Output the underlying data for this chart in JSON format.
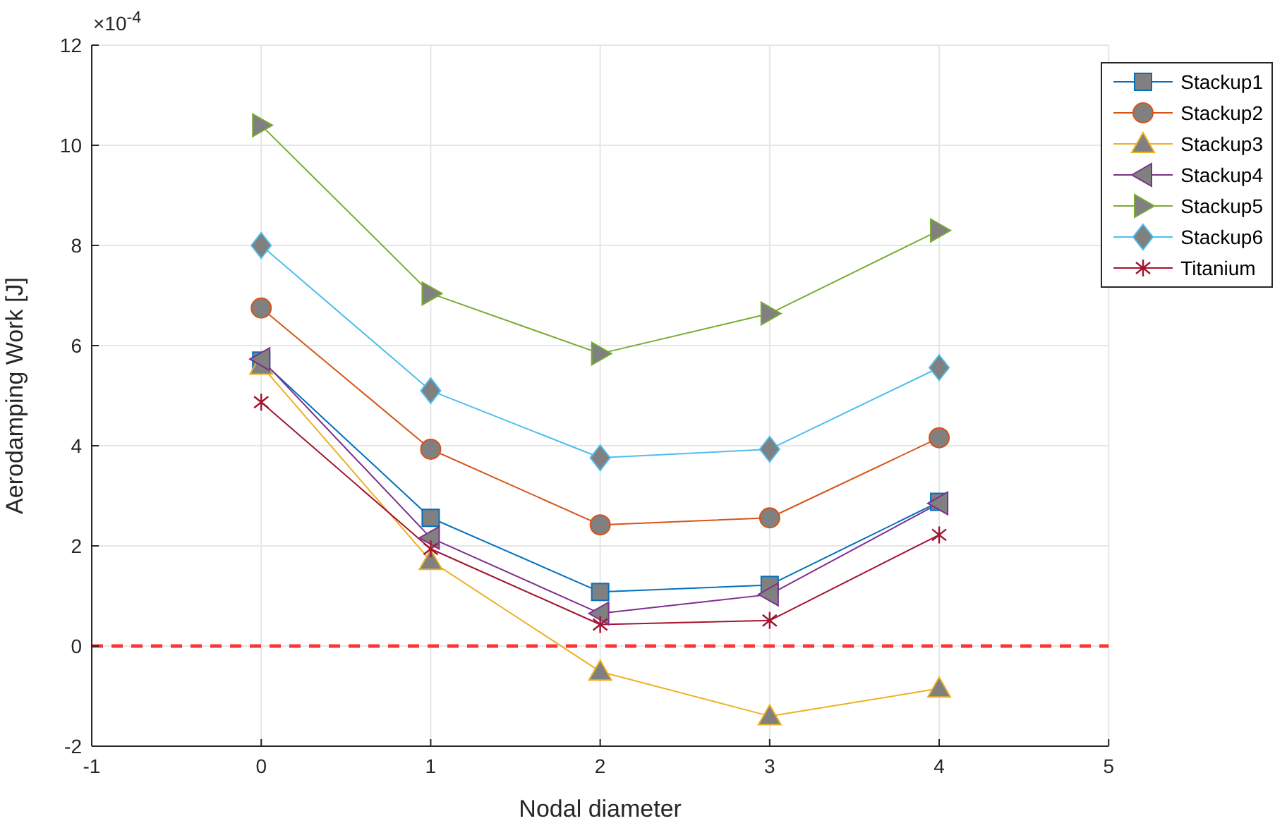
{
  "chart_data": {
    "type": "line",
    "xlabel": "Nodal diameter",
    "ylabel": "Aerodamping Work [J]",
    "annotations": [
      "×10$^{-4}$"
    ],
    "x": [
      0,
      1,
      2,
      3,
      4
    ],
    "xlim": [
      -1,
      5
    ],
    "xticks": [
      -1,
      0,
      1,
      2,
      3,
      4,
      5
    ],
    "ylim": [
      -2,
      12
    ],
    "yticks": [
      -2,
      0,
      2,
      4,
      6,
      8,
      10,
      12
    ],
    "grid": true,
    "legend": "top right",
    "line_style": "solid",
    "ref_lines": [
      {
        "axis": "y",
        "value": 0,
        "color": "#ff3333",
        "line_style": "dashed"
      }
    ],
    "series": [
      {
        "name": "Stackup1",
        "color": "#0072bd",
        "marker": "square",
        "values": [
          5.7,
          2.56,
          1.08,
          1.22,
          2.88
        ]
      },
      {
        "name": "Stackup2",
        "color": "#d95319",
        "marker": "circle",
        "values": [
          6.75,
          3.93,
          2.42,
          2.56,
          4.16
        ]
      },
      {
        "name": "Stackup3",
        "color": "#edb120",
        "marker": "triangle",
        "values": [
          5.6,
          1.7,
          -0.51,
          -1.4,
          -0.85
        ]
      },
      {
        "name": "Stackup4",
        "color": "#7e2f8e",
        "marker": "triangle-left",
        "values": [
          5.73,
          2.16,
          0.65,
          1.03,
          2.85
        ]
      },
      {
        "name": "Stackup5",
        "color": "#77ac30",
        "marker": "triangle-right",
        "values": [
          10.4,
          7.04,
          5.84,
          6.64,
          8.3
        ]
      },
      {
        "name": "Stackup6",
        "color": "#4dbeee",
        "marker": "diamond",
        "values": [
          8.0,
          5.1,
          3.76,
          3.93,
          5.56
        ]
      },
      {
        "name": "Titanium",
        "color": "#a2142f",
        "marker": "cross",
        "values": [
          4.87,
          1.94,
          0.43,
          0.51,
          2.22
        ]
      }
    ]
  }
}
